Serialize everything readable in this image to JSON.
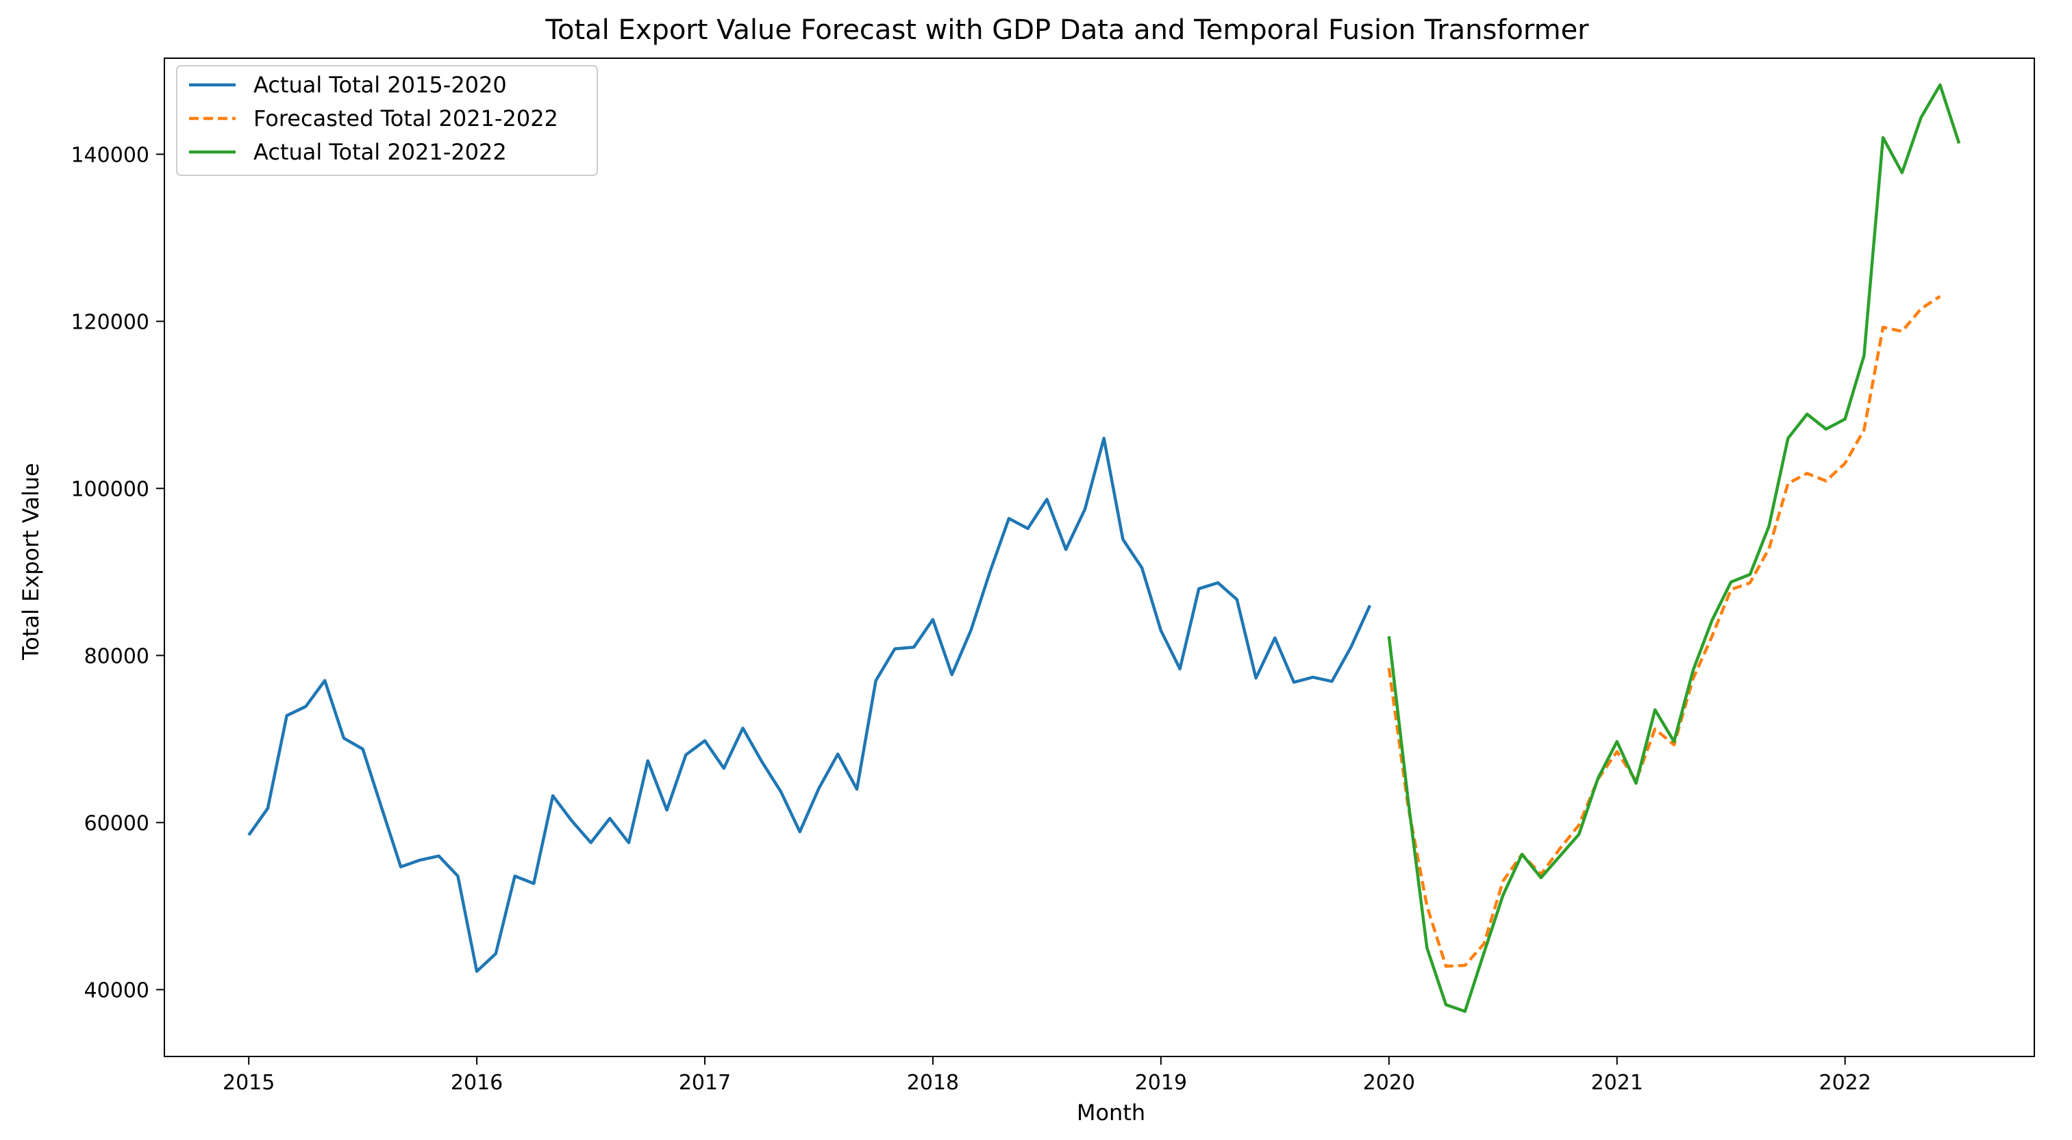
{
  "chart_data": {
    "type": "line",
    "title": "Total Export Value Forecast with GDP Data and Temporal Fusion Transformer",
    "xlabel": "Month",
    "ylabel": "Total Export Value",
    "xlim": [
      2014.63,
      2022.83
    ],
    "ylim": [
      32000,
      151500
    ],
    "x_ticks": [
      2015,
      2016,
      2017,
      2018,
      2019,
      2020,
      2021,
      2022
    ],
    "x_tick_labels": [
      "2015",
      "2016",
      "2017",
      "2018",
      "2019",
      "2020",
      "2021",
      "2022"
    ],
    "y_ticks": [
      40000,
      60000,
      80000,
      100000,
      120000,
      140000
    ],
    "y_tick_labels": [
      "40000",
      "60000",
      "80000",
      "100000",
      "120000",
      "140000"
    ],
    "grid": false,
    "legend_position": "top-left",
    "series": [
      {
        "name": "Actual Total 2015-2020",
        "color": "#1f77b4",
        "style": "solid",
        "start": 2015.0,
        "step": 0.08333,
        "values": [
          58500,
          61700,
          72800,
          73900,
          77000,
          70100,
          68800,
          61700,
          54700,
          55500,
          56000,
          53600,
          42200,
          44300,
          53600,
          52700,
          63200,
          60200,
          57600,
          60500,
          57600,
          67400,
          61500,
          68100,
          69800,
          66500,
          71300,
          67300,
          63700,
          58900,
          64100,
          68200,
          64000,
          77000,
          80800,
          81000,
          84300,
          77700,
          83000,
          90000,
          96400,
          95200,
          98700,
          92700,
          97500,
          106000,
          93900,
          90500,
          83000,
          78400,
          88000,
          88700,
          86700,
          77300,
          82100,
          76800,
          77400,
          76900,
          81000,
          86000
        ]
      },
      {
        "name": "Forecasted Total 2021-2022",
        "color": "#ff7f0e",
        "style": "dashed",
        "start": 2020.0,
        "step": 0.08333,
        "values": [
          78500,
          62000,
          50000,
          42800,
          42900,
          45500,
          53000,
          56200,
          53800,
          56900,
          59700,
          65200,
          68500,
          65000,
          71200,
          69300,
          77200,
          82300,
          87900,
          88700,
          92800,
          100600,
          101800,
          100900,
          103000,
          107000,
          119300,
          118800,
          121500,
          123000
        ]
      },
      {
        "name": "Actual Total 2021-2022",
        "color": "#2ca02c",
        "style": "solid",
        "start": 2020.0,
        "step": 0.08333,
        "values": [
          82300,
          62800,
          45000,
          38200,
          37400,
          44400,
          51300,
          56200,
          53400,
          56000,
          58600,
          65300,
          69700,
          64700,
          73500,
          69700,
          78200,
          84200,
          88800,
          89700,
          95500,
          106000,
          108900,
          107100,
          108300,
          115900,
          142000,
          137800,
          144400,
          148300,
          141300
        ]
      }
    ]
  }
}
